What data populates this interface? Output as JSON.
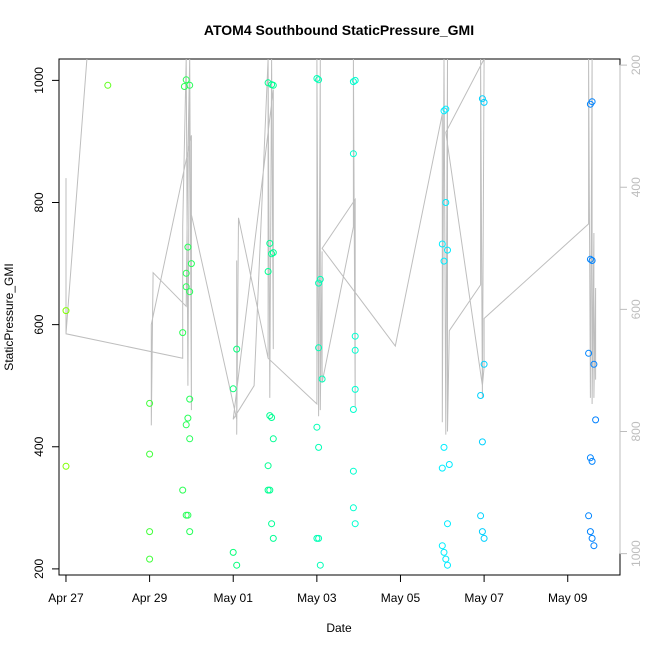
{
  "chart_data": {
    "type": "scatter",
    "title": "ATOM4 Southbound StaticPressure_GMI",
    "xlabel": "Date",
    "ylabel": "StaticPressure_GMI",
    "xlim": [
      "2016-04-26T20:00",
      "2016-05-10T06:00"
    ],
    "ylim": [
      190,
      1035
    ],
    "x_ticks": [
      {
        "label": "Apr 27",
        "date": "2016-04-27"
      },
      {
        "label": "Apr 29",
        "date": "2016-04-29"
      },
      {
        "label": "May 01",
        "date": "2016-05-01"
      },
      {
        "label": "May 03",
        "date": "2016-05-03"
      },
      {
        "label": "May 05",
        "date": "2016-05-05"
      },
      {
        "label": "May 07",
        "date": "2016-05-07"
      },
      {
        "label": "May 09",
        "date": "2016-05-09"
      }
    ],
    "y_ticks": [
      200,
      400,
      600,
      800,
      1000
    ],
    "y2_ticks": [
      200,
      400,
      600,
      800,
      1000
    ],
    "y2_reversed": true,
    "grid": false,
    "marker": "open-circle",
    "colors": {
      "line": "#bebebe",
      "ramp": [
        "#7fff00",
        "#00ff7f",
        "#00ffff",
        "#0080ff"
      ]
    },
    "points": [
      {
        "x": "2016-04-27T00:00",
        "y": 623
      },
      {
        "x": "2016-04-27T00:00",
        "y": 368
      },
      {
        "x": "2016-04-28T00:00",
        "y": 992
      },
      {
        "x": "2016-04-29T00:00",
        "y": 471
      },
      {
        "x": "2016-04-29T00:00",
        "y": 388
      },
      {
        "x": "2016-04-29T00:00",
        "y": 261
      },
      {
        "x": "2016-04-29T00:00",
        "y": 216
      },
      {
        "x": "2016-04-29T19:00",
        "y": 587
      },
      {
        "x": "2016-04-29T19:00",
        "y": 329
      },
      {
        "x": "2016-04-29T20:00",
        "y": 990
      },
      {
        "x": "2016-04-29T21:00",
        "y": 1001
      },
      {
        "x": "2016-04-29T21:00",
        "y": 684
      },
      {
        "x": "2016-04-29T21:00",
        "y": 662
      },
      {
        "x": "2016-04-29T21:00",
        "y": 436
      },
      {
        "x": "2016-04-29T21:00",
        "y": 288
      },
      {
        "x": "2016-04-29T22:00",
        "y": 727
      },
      {
        "x": "2016-04-29T22:00",
        "y": 447
      },
      {
        "x": "2016-04-29T22:00",
        "y": 288
      },
      {
        "x": "2016-04-29T23:00",
        "y": 992
      },
      {
        "x": "2016-04-29T23:00",
        "y": 654
      },
      {
        "x": "2016-04-29T23:00",
        "y": 478
      },
      {
        "x": "2016-04-29T23:00",
        "y": 413
      },
      {
        "x": "2016-04-29T23:00",
        "y": 261
      },
      {
        "x": "2016-04-30T00:00",
        "y": 700
      },
      {
        "x": "2016-05-01T00:00",
        "y": 495
      },
      {
        "x": "2016-05-01T00:00",
        "y": 227
      },
      {
        "x": "2016-05-01T02:00",
        "y": 560
      },
      {
        "x": "2016-05-01T02:00",
        "y": 206
      },
      {
        "x": "2016-05-01T20:00",
        "y": 996
      },
      {
        "x": "2016-05-01T20:00",
        "y": 687
      },
      {
        "x": "2016-05-01T20:00",
        "y": 369
      },
      {
        "x": "2016-05-01T20:00",
        "y": 329
      },
      {
        "x": "2016-05-01T21:00",
        "y": 733
      },
      {
        "x": "2016-05-01T21:00",
        "y": 451
      },
      {
        "x": "2016-05-01T21:00",
        "y": 329
      },
      {
        "x": "2016-05-01T22:00",
        "y": 993
      },
      {
        "x": "2016-05-01T22:00",
        "y": 716
      },
      {
        "x": "2016-05-01T22:00",
        "y": 448
      },
      {
        "x": "2016-05-01T22:00",
        "y": 274
      },
      {
        "x": "2016-05-01T23:00",
        "y": 992
      },
      {
        "x": "2016-05-01T23:00",
        "y": 718
      },
      {
        "x": "2016-05-01T23:00",
        "y": 413
      },
      {
        "x": "2016-05-01T23:00",
        "y": 250
      },
      {
        "x": "2016-05-03T00:00",
        "y": 1003
      },
      {
        "x": "2016-05-03T00:00",
        "y": 432
      },
      {
        "x": "2016-05-03T00:00",
        "y": 250
      },
      {
        "x": "2016-05-03T01:00",
        "y": 1001
      },
      {
        "x": "2016-05-03T01:00",
        "y": 668
      },
      {
        "x": "2016-05-03T01:00",
        "y": 562
      },
      {
        "x": "2016-05-03T01:00",
        "y": 399
      },
      {
        "x": "2016-05-03T01:00",
        "y": 250
      },
      {
        "x": "2016-05-03T02:00",
        "y": 674
      },
      {
        "x": "2016-05-03T02:00",
        "y": 206
      },
      {
        "x": "2016-05-03T03:00",
        "y": 511
      },
      {
        "x": "2016-05-03T21:00",
        "y": 998
      },
      {
        "x": "2016-05-03T21:00",
        "y": 880
      },
      {
        "x": "2016-05-03T21:00",
        "y": 461
      },
      {
        "x": "2016-05-03T21:00",
        "y": 360
      },
      {
        "x": "2016-05-03T21:00",
        "y": 300
      },
      {
        "x": "2016-05-03T22:00",
        "y": 1000
      },
      {
        "x": "2016-05-03T22:00",
        "y": 581
      },
      {
        "x": "2016-05-03T22:00",
        "y": 558
      },
      {
        "x": "2016-05-03T22:00",
        "y": 494
      },
      {
        "x": "2016-05-03T22:00",
        "y": 274
      },
      {
        "x": "2016-05-06T00:00",
        "y": 732
      },
      {
        "x": "2016-05-06T00:00",
        "y": 365
      },
      {
        "x": "2016-05-06T00:00",
        "y": 238
      },
      {
        "x": "2016-05-06T01:00",
        "y": 950
      },
      {
        "x": "2016-05-06T01:00",
        "y": 704
      },
      {
        "x": "2016-05-06T01:00",
        "y": 399
      },
      {
        "x": "2016-05-06T01:00",
        "y": 227
      },
      {
        "x": "2016-05-06T02:00",
        "y": 953
      },
      {
        "x": "2016-05-06T02:00",
        "y": 800
      },
      {
        "x": "2016-05-06T02:00",
        "y": 216
      },
      {
        "x": "2016-05-06T03:00",
        "y": 722
      },
      {
        "x": "2016-05-06T03:00",
        "y": 274
      },
      {
        "x": "2016-05-06T03:00",
        "y": 206
      },
      {
        "x": "2016-05-06T04:00",
        "y": 371
      },
      {
        "x": "2016-05-06T22:00",
        "y": 484
      },
      {
        "x": "2016-05-06T22:00",
        "y": 287
      },
      {
        "x": "2016-05-06T23:00",
        "y": 970
      },
      {
        "x": "2016-05-06T23:00",
        "y": 408
      },
      {
        "x": "2016-05-06T23:00",
        "y": 261
      },
      {
        "x": "2016-05-07T00:00",
        "y": 964
      },
      {
        "x": "2016-05-07T00:00",
        "y": 535
      },
      {
        "x": "2016-05-07T00:00",
        "y": 250
      },
      {
        "x": "2016-05-09T12:00",
        "y": 553
      },
      {
        "x": "2016-05-09T12:00",
        "y": 287
      },
      {
        "x": "2016-05-09T13:00",
        "y": 961
      },
      {
        "x": "2016-05-09T13:00",
        "y": 707
      },
      {
        "x": "2016-05-09T13:00",
        "y": 382
      },
      {
        "x": "2016-05-09T13:00",
        "y": 261
      },
      {
        "x": "2016-05-09T14:00",
        "y": 965
      },
      {
        "x": "2016-05-09T14:00",
        "y": 705
      },
      {
        "x": "2016-05-09T14:00",
        "y": 376
      },
      {
        "x": "2016-05-09T14:00",
        "y": 250
      },
      {
        "x": "2016-05-09T15:00",
        "y": 535
      },
      {
        "x": "2016-05-09T15:00",
        "y": 238
      },
      {
        "x": "2016-05-09T16:00",
        "y": 444
      }
    ],
    "line": [
      {
        "x": "2016-04-27T00:00",
        "y": 840
      },
      {
        "x": "2016-04-27T00:00",
        "y": 585
      },
      {
        "x": "2016-04-27T12:00",
        "y": 1035
      },
      {
        "x": "2016-04-27T00:00",
        "y": 585
      },
      {
        "x": "2016-04-29T19:00",
        "y": 545
      },
      {
        "x": "2016-04-29T19:00",
        "y": 760
      },
      {
        "x": "2016-04-29T21:00",
        "y": 1035
      },
      {
        "x": "2016-04-29T22:00",
        "y": 500
      },
      {
        "x": "2016-04-29T23:00",
        "y": 1035
      },
      {
        "x": "2016-04-30T00:00",
        "y": 460
      },
      {
        "x": "2016-04-30T00:00",
        "y": 910
      },
      {
        "x": "2016-04-29T01:00",
        "y": 600
      },
      {
        "x": "2016-04-29T01:00",
        "y": 435
      },
      {
        "x": "2016-04-29T02:00",
        "y": 685
      },
      {
        "x": "2016-04-29T21:00",
        "y": 630
      },
      {
        "x": "2016-04-29T22:00",
        "y": 880
      },
      {
        "x": "2016-04-29T23:00",
        "y": 1035
      },
      {
        "x": "2016-04-30T00:00",
        "y": 500
      },
      {
        "x": "2016-04-30T00:00",
        "y": 780
      },
      {
        "x": "2016-05-01T02:00",
        "y": 445
      },
      {
        "x": "2016-05-01T02:00",
        "y": 705
      },
      {
        "x": "2016-05-01T02:00",
        "y": 420
      },
      {
        "x": "2016-05-01T03:00",
        "y": 775
      },
      {
        "x": "2016-05-01T20:00",
        "y": 545
      },
      {
        "x": "2016-05-01T20:00",
        "y": 1035
      },
      {
        "x": "2016-05-01T21:00",
        "y": 480
      },
      {
        "x": "2016-05-01T22:00",
        "y": 1035
      },
      {
        "x": "2016-05-01T23:00",
        "y": 560
      },
      {
        "x": "2016-05-01T23:00",
        "y": 985
      },
      {
        "x": "2016-05-01T00:00",
        "y": 445
      },
      {
        "x": "2016-05-01T12:00",
        "y": 500
      },
      {
        "x": "2016-05-01T20:00",
        "y": 1035
      },
      {
        "x": "2016-05-01T20:00",
        "y": 545
      },
      {
        "x": "2016-05-03T00:00",
        "y": 470
      },
      {
        "x": "2016-05-03T00:00",
        "y": 1035
      },
      {
        "x": "2016-05-03T01:00",
        "y": 450
      },
      {
        "x": "2016-05-03T02:00",
        "y": 1035
      },
      {
        "x": "2016-05-03T02:00",
        "y": 460
      },
      {
        "x": "2016-05-03T03:00",
        "y": 720
      },
      {
        "x": "2016-05-03T03:00",
        "y": 505
      },
      {
        "x": "2016-05-03T21:00",
        "y": 760
      },
      {
        "x": "2016-05-03T21:00",
        "y": 1035
      },
      {
        "x": "2016-05-03T22:00",
        "y": 465
      },
      {
        "x": "2016-05-03T22:00",
        "y": 805
      },
      {
        "x": "2016-05-03T03:00",
        "y": 725
      },
      {
        "x": "2016-05-04T21:00",
        "y": 565
      },
      {
        "x": "2016-05-06T00:00",
        "y": 945
      },
      {
        "x": "2016-05-06T00:00",
        "y": 440
      },
      {
        "x": "2016-05-06T01:00",
        "y": 1035
      },
      {
        "x": "2016-05-06T02:00",
        "y": 420
      },
      {
        "x": "2016-05-06T03:00",
        "y": 1035
      },
      {
        "x": "2016-05-06T03:00",
        "y": 425
      },
      {
        "x": "2016-05-06T04:00",
        "y": 590
      },
      {
        "x": "2016-05-06T22:00",
        "y": 665
      },
      {
        "x": "2016-05-06T22:00",
        "y": 1035
      },
      {
        "x": "2016-05-06T23:00",
        "y": 480
      },
      {
        "x": "2016-05-07T00:00",
        "y": 1035
      },
      {
        "x": "2016-05-06T02:00",
        "y": 915
      },
      {
        "x": "2016-05-06T23:00",
        "y": 500
      },
      {
        "x": "2016-05-07T00:00",
        "y": 530
      },
      {
        "x": "2016-05-07T00:00",
        "y": 610
      },
      {
        "x": "2016-05-09T12:00",
        "y": 765
      },
      {
        "x": "2016-05-09T12:00",
        "y": 1035
      },
      {
        "x": "2016-05-09T13:00",
        "y": 480
      },
      {
        "x": "2016-05-09T14:00",
        "y": 1035
      },
      {
        "x": "2016-05-09T14:00",
        "y": 470
      },
      {
        "x": "2016-05-09T15:00",
        "y": 750
      },
      {
        "x": "2016-05-09T15:00",
        "y": 480
      },
      {
        "x": "2016-05-09T16:00",
        "y": 660
      },
      {
        "x": "2016-05-09T16:00",
        "y": 510
      }
    ]
  }
}
